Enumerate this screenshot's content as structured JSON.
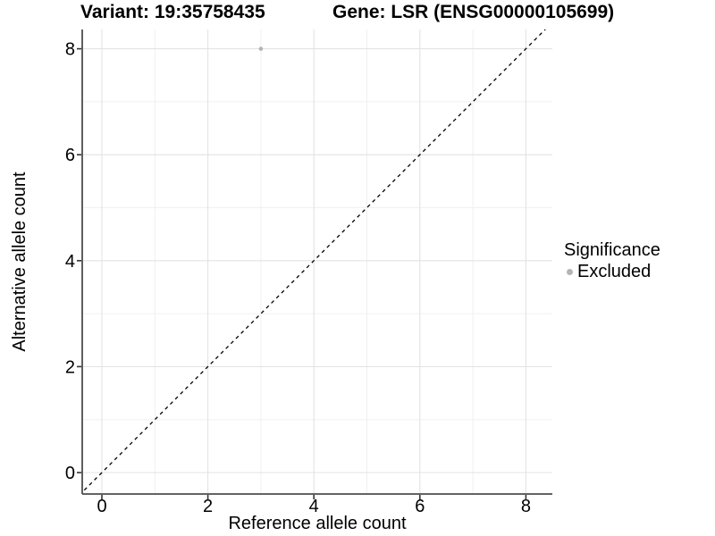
{
  "figure": {
    "title_left": "Variant: 19:35758435",
    "title_right": "Gene: LSR (ENSG00000105699)"
  },
  "chart_data": {
    "type": "scatter",
    "title": "Variant: 19:35758435 / Gene: LSR (ENSG00000105699)",
    "xlabel": "Reference allele count",
    "ylabel": "Alternative allele count",
    "xlim": [
      -0.37,
      8.53
    ],
    "ylim": [
      -0.42,
      8.36
    ],
    "x_ticks": [
      0,
      2,
      4,
      6,
      8
    ],
    "y_ticks": [
      0,
      2,
      4,
      6,
      8
    ],
    "x_minor_ticks": [
      1,
      3,
      5,
      7
    ],
    "y_minor_ticks": [
      1,
      3,
      5,
      7
    ],
    "grid": true,
    "series": [
      {
        "name": "Excluded",
        "color": "#b4b4b4",
        "points": [
          {
            "x": 3,
            "y": 8
          }
        ]
      }
    ],
    "reference_line": {
      "kind": "identity",
      "slope": 1,
      "intercept": 0,
      "style": "dashed",
      "color": "#000000"
    },
    "legend": {
      "title": "Significance",
      "position": "right",
      "items": [
        {
          "label": "Excluded",
          "color": "#b4b4b4"
        }
      ]
    }
  },
  "styles": {
    "background": "#ffffff",
    "grid_major": "#e3e3e3",
    "grid_minor": "#f0f0f0",
    "axis_line": "#4d4d4d",
    "tick_mark": "#333333",
    "text": "#000000"
  }
}
